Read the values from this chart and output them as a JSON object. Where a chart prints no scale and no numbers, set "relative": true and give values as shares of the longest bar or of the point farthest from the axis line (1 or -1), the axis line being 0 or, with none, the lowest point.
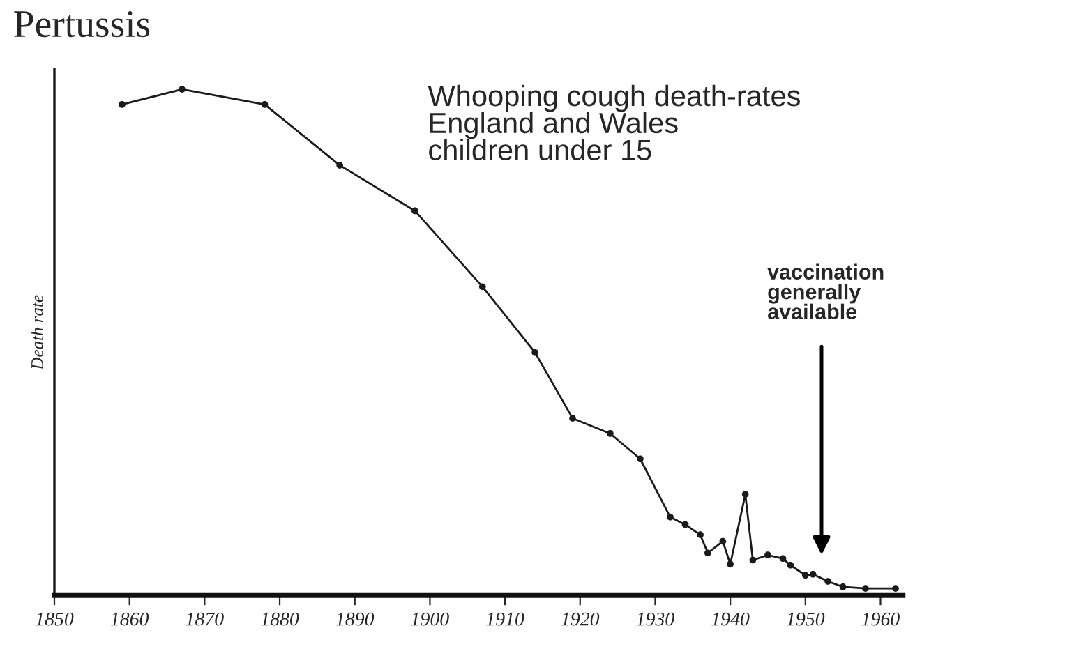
{
  "chart_data": {
    "type": "line",
    "title": "Pertussis",
    "ylabel": "Death rate",
    "relative": true,
    "x": [
      1859,
      1867,
      1878,
      1888,
      1898,
      1907,
      1914,
      1919,
      1924,
      1928,
      1932,
      1934,
      1936,
      1937,
      1939,
      1940,
      1942,
      1943,
      1945,
      1947,
      1948,
      1950,
      1951,
      1953,
      1955,
      1958,
      1962
    ],
    "series": [
      {
        "color": "#1a1a1a",
        "values": [
          0.97,
          1.0,
          0.97,
          0.85,
          0.76,
          0.61,
          0.48,
          0.35,
          0.32,
          0.27,
          0.155,
          0.14,
          0.12,
          0.084,
          0.107,
          0.062,
          0.2,
          0.07,
          0.08,
          0.073,
          0.06,
          0.04,
          0.042,
          0.028,
          0.017,
          0.014,
          0.014
        ]
      }
    ],
    "xlim": [
      1850,
      1963
    ],
    "xticks": [
      1850,
      1860,
      1870,
      1880,
      1890,
      1900,
      1910,
      1920,
      1930,
      1940,
      1950,
      1960
    ],
    "tick_labels": "x",
    "marker": "circle",
    "line_style": "solid",
    "grid": false,
    "legend": false,
    "annotations": [
      "Whooping cough death-rates\nEngland and Wales\nchildren under 15",
      "vaccination\ngenerally\navailable"
    ]
  }
}
